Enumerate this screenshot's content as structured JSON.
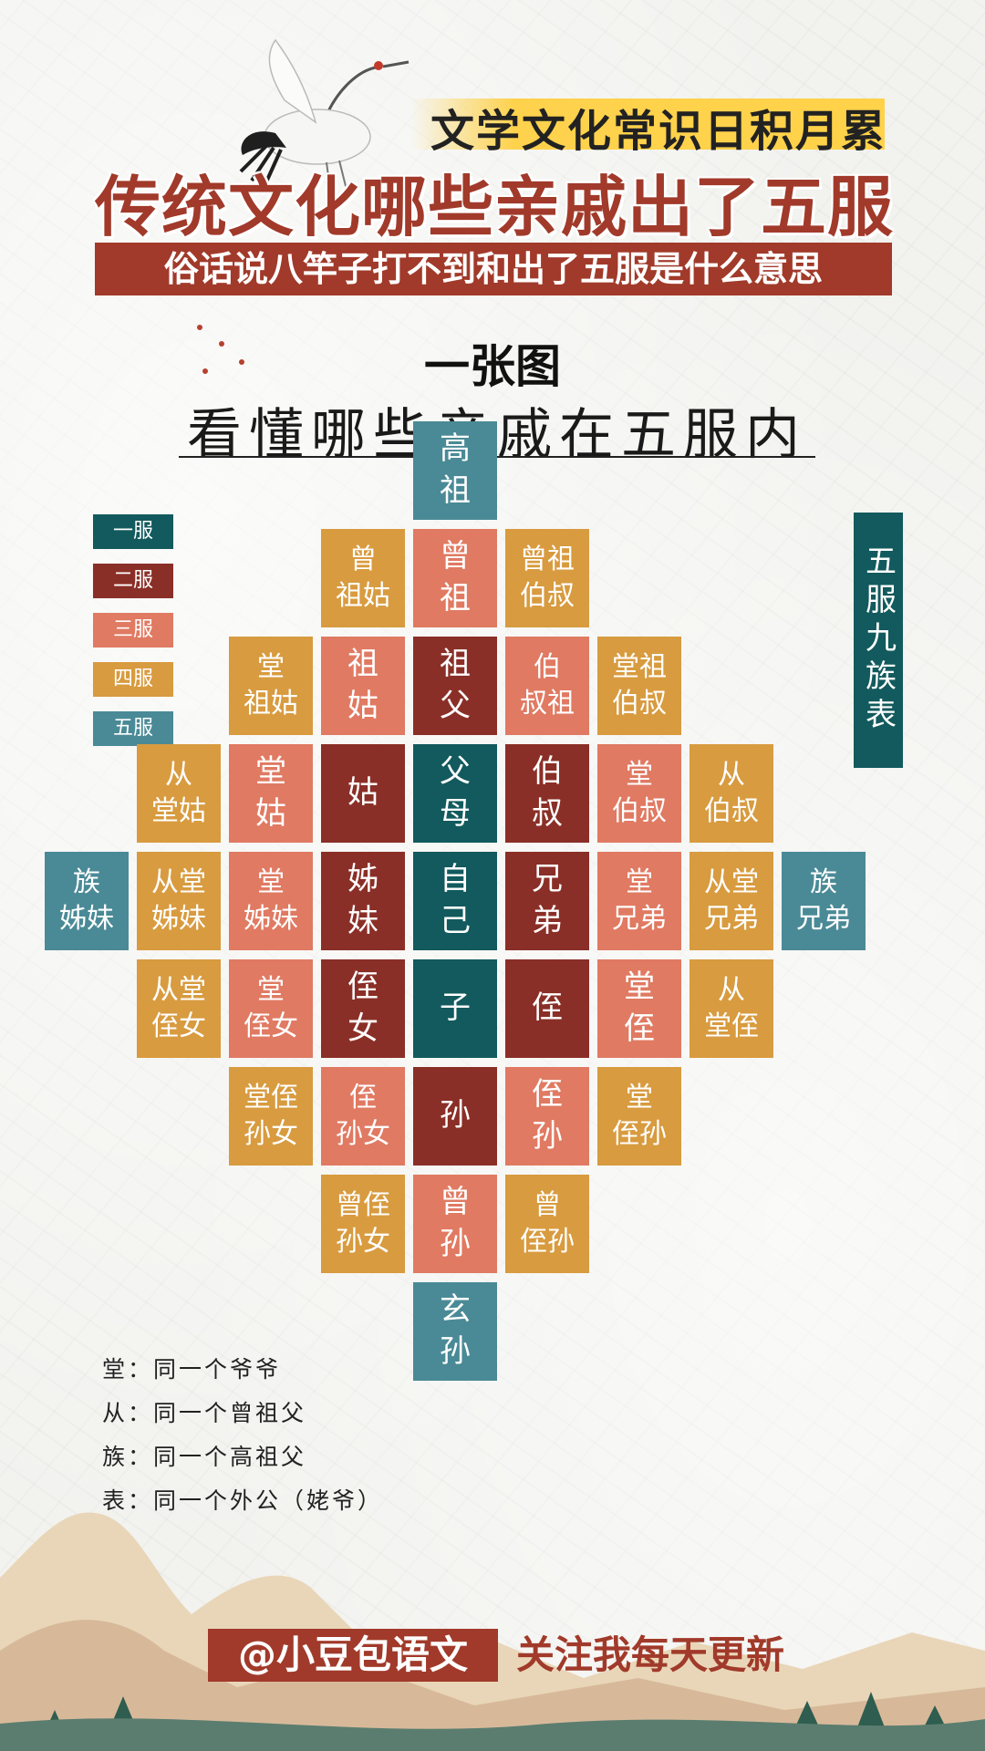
{
  "header": {
    "tagline": "文学文化常识日积月累",
    "title": "传统文化哪些亲戚出了五服",
    "subtitle": "俗话说八竿子打不到和出了五服是什么意思",
    "caption_main": "一张图",
    "caption_sub": "看懂哪些亲戚在五服内"
  },
  "colors": {
    "1": "#125a5d",
    "2": "#8a2f27",
    "3": "#e07a62",
    "4": "#d89b3f",
    "5": "#4a8a96",
    "brand": "#a13a2a"
  },
  "legend": [
    {
      "label": "一服",
      "level": 1
    },
    {
      "label": "二服",
      "level": 2
    },
    {
      "label": "三服",
      "level": 3
    },
    {
      "label": "四服",
      "level": 4
    },
    {
      "label": "五服",
      "level": 5
    }
  ],
  "table_title": "五服九族表",
  "cells": [
    {
      "text": "高\n祖",
      "level": 5,
      "col": 0,
      "row": -4
    },
    {
      "text": "曾\n祖姑",
      "level": 4,
      "col": -1,
      "row": -3
    },
    {
      "text": "曾\n祖",
      "level": 3,
      "col": 0,
      "row": -3
    },
    {
      "text": "曾祖\n伯叔",
      "level": 4,
      "col": 1,
      "row": -3
    },
    {
      "text": "堂\n祖姑",
      "level": 4,
      "col": -2,
      "row": -2
    },
    {
      "text": "祖\n姑",
      "level": 3,
      "col": -1,
      "row": -2
    },
    {
      "text": "祖\n父",
      "level": 2,
      "col": 0,
      "row": -2
    },
    {
      "text": "伯\n叔祖",
      "level": 3,
      "col": 1,
      "row": -2
    },
    {
      "text": "堂祖\n伯叔",
      "level": 4,
      "col": 2,
      "row": -2
    },
    {
      "text": "从\n堂姑",
      "level": 4,
      "col": -3,
      "row": -1
    },
    {
      "text": "堂\n姑",
      "level": 3,
      "col": -2,
      "row": -1
    },
    {
      "text": "姑",
      "level": 2,
      "col": -1,
      "row": -1
    },
    {
      "text": "父\n母",
      "level": 1,
      "col": 0,
      "row": -1
    },
    {
      "text": "伯\n叔",
      "level": 2,
      "col": 1,
      "row": -1
    },
    {
      "text": "堂\n伯叔",
      "level": 3,
      "col": 2,
      "row": -1
    },
    {
      "text": "从\n伯叔",
      "level": 4,
      "col": 3,
      "row": -1
    },
    {
      "text": "族\n姊妹",
      "level": 5,
      "col": -4,
      "row": 0
    },
    {
      "text": "从堂\n姊妹",
      "level": 4,
      "col": -3,
      "row": 0
    },
    {
      "text": "堂\n姊妹",
      "level": 3,
      "col": -2,
      "row": 0
    },
    {
      "text": "姊\n妹",
      "level": 2,
      "col": -1,
      "row": 0
    },
    {
      "text": "自\n己",
      "level": 1,
      "col": 0,
      "row": 0
    },
    {
      "text": "兄\n弟",
      "level": 2,
      "col": 1,
      "row": 0
    },
    {
      "text": "堂\n兄弟",
      "level": 3,
      "col": 2,
      "row": 0
    },
    {
      "text": "从堂\n兄弟",
      "level": 4,
      "col": 3,
      "row": 0
    },
    {
      "text": "族\n兄弟",
      "level": 5,
      "col": 4,
      "row": 0
    },
    {
      "text": "从堂\n侄女",
      "level": 4,
      "col": -3,
      "row": 1
    },
    {
      "text": "堂\n侄女",
      "level": 3,
      "col": -2,
      "row": 1
    },
    {
      "text": "侄\n女",
      "level": 2,
      "col": -1,
      "row": 1
    },
    {
      "text": "子",
      "level": 1,
      "col": 0,
      "row": 1
    },
    {
      "text": "侄",
      "level": 2,
      "col": 1,
      "row": 1
    },
    {
      "text": "堂\n侄",
      "level": 3,
      "col": 2,
      "row": 1
    },
    {
      "text": "从\n堂侄",
      "level": 4,
      "col": 3,
      "row": 1
    },
    {
      "text": "堂侄\n孙女",
      "level": 4,
      "col": -2,
      "row": 2
    },
    {
      "text": "侄\n孙女",
      "level": 3,
      "col": -1,
      "row": 2
    },
    {
      "text": "孙",
      "level": 2,
      "col": 0,
      "row": 2
    },
    {
      "text": "侄\n孙",
      "level": 3,
      "col": 1,
      "row": 2
    },
    {
      "text": "堂\n侄孙",
      "level": 4,
      "col": 2,
      "row": 2
    },
    {
      "text": "曾侄\n孙女",
      "level": 4,
      "col": -1,
      "row": 3
    },
    {
      "text": "曾\n孙",
      "level": 3,
      "col": 0,
      "row": 3
    },
    {
      "text": "曾\n侄孙",
      "level": 4,
      "col": 1,
      "row": 3
    },
    {
      "text": "玄\n孙",
      "level": 5,
      "col": 0,
      "row": 4
    }
  ],
  "notes": [
    "堂：同一个爷爷",
    "从：同一个曾祖父",
    "族：同一个高祖父",
    "表：同一个外公（姥爷）"
  ],
  "footer": {
    "handle": "@小豆包语文",
    "follow": "关注我每天更新"
  }
}
